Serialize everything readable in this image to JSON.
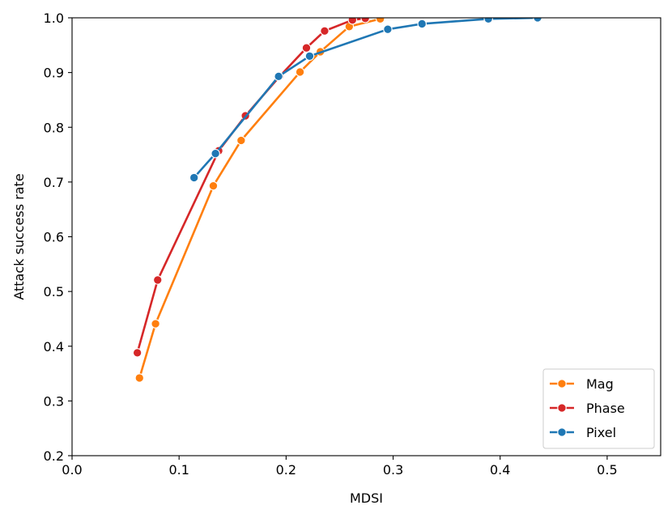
{
  "chart_data": {
    "type": "line",
    "title": "",
    "xlabel": "MDSI",
    "ylabel": "Attack success rate",
    "xlim": [
      0.0,
      0.55
    ],
    "ylim": [
      0.2,
      1.0
    ],
    "xticks": [
      0.0,
      0.1,
      0.2,
      0.3,
      0.4,
      0.5
    ],
    "xtick_labels": [
      "0.0",
      "0.1",
      "0.2",
      "0.3",
      "0.4",
      "0.5"
    ],
    "yticks": [
      0.2,
      0.3,
      0.4,
      0.5,
      0.6,
      0.7,
      0.8,
      0.9,
      1.0
    ],
    "ytick_labels": [
      "0.2",
      "0.3",
      "0.4",
      "0.5",
      "0.6",
      "0.7",
      "0.8",
      "0.9",
      "1.0"
    ],
    "grid": false,
    "legend_position": "bottom-right",
    "series": [
      {
        "name": "Mag",
        "color": "#ff7f0e",
        "points": [
          [
            0.063,
            0.342
          ],
          [
            0.078,
            0.441
          ],
          [
            0.132,
            0.693
          ],
          [
            0.158,
            0.776
          ],
          [
            0.213,
            0.901
          ],
          [
            0.232,
            0.938
          ],
          [
            0.259,
            0.984
          ],
          [
            0.288,
            0.998
          ]
        ]
      },
      {
        "name": "Phase",
        "color": "#d62728",
        "points": [
          [
            0.061,
            0.388
          ],
          [
            0.08,
            0.521
          ],
          [
            0.137,
            0.757
          ],
          [
            0.162,
            0.821
          ],
          [
            0.194,
            0.893
          ],
          [
            0.219,
            0.945
          ],
          [
            0.236,
            0.976
          ],
          [
            0.262,
            0.996
          ],
          [
            0.274,
            0.999
          ]
        ]
      },
      {
        "name": "Pixel",
        "color": "#1f77b4",
        "points": [
          [
            0.114,
            0.708
          ],
          [
            0.134,
            0.752
          ],
          [
            0.193,
            0.893
          ],
          [
            0.222,
            0.93
          ],
          [
            0.295,
            0.979
          ],
          [
            0.327,
            0.989
          ],
          [
            0.389,
            0.998
          ],
          [
            0.435,
            1.0
          ]
        ]
      }
    ]
  }
}
